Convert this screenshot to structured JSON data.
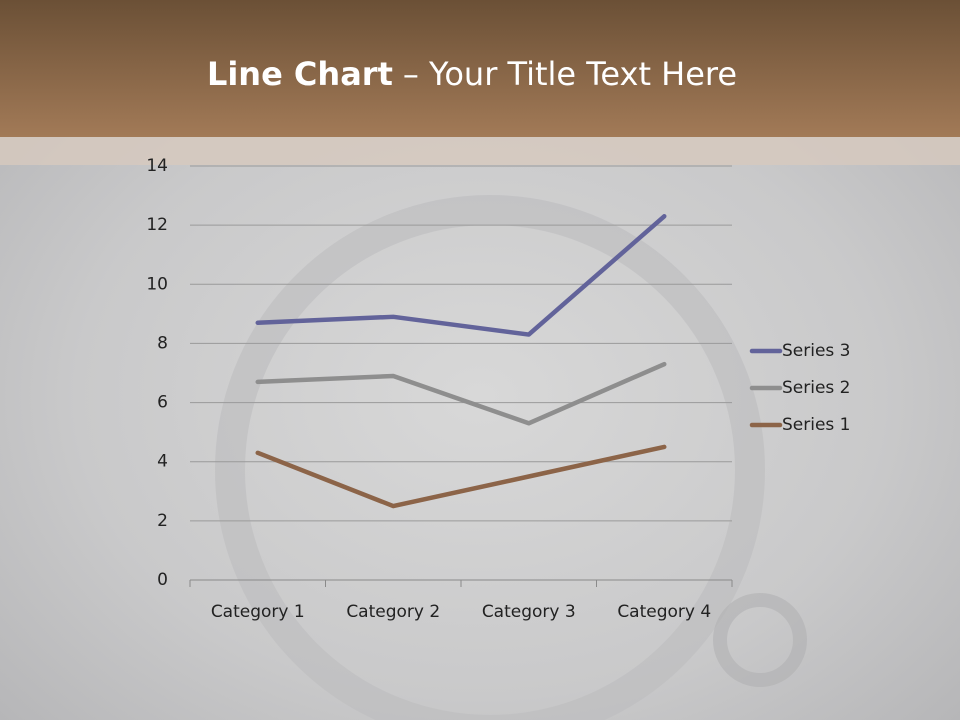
{
  "chart_data": {
    "type": "line",
    "stacked": true,
    "title": {
      "bold": "Line Chart",
      "rest": "– Your Title Text Here"
    },
    "categories": [
      "Category 1",
      "Category 2",
      "Category 3",
      "Category 4"
    ],
    "series": [
      {
        "name": "Series 1",
        "color": "#8c6448",
        "values": [
          4.3,
          2.5,
          3.5,
          4.5
        ]
      },
      {
        "name": "Series 2",
        "color": "#8e8e8e",
        "values": [
          2.4,
          4.4,
          1.8,
          2.8
        ]
      },
      {
        "name": "Series 3",
        "color": "#62639a",
        "values": [
          2,
          2,
          3,
          5
        ]
      }
    ],
    "ylim": [
      0,
      14
    ],
    "yticks": [
      0,
      2,
      4,
      6,
      8,
      10,
      12,
      14
    ],
    "grid": true,
    "legend": "right"
  }
}
